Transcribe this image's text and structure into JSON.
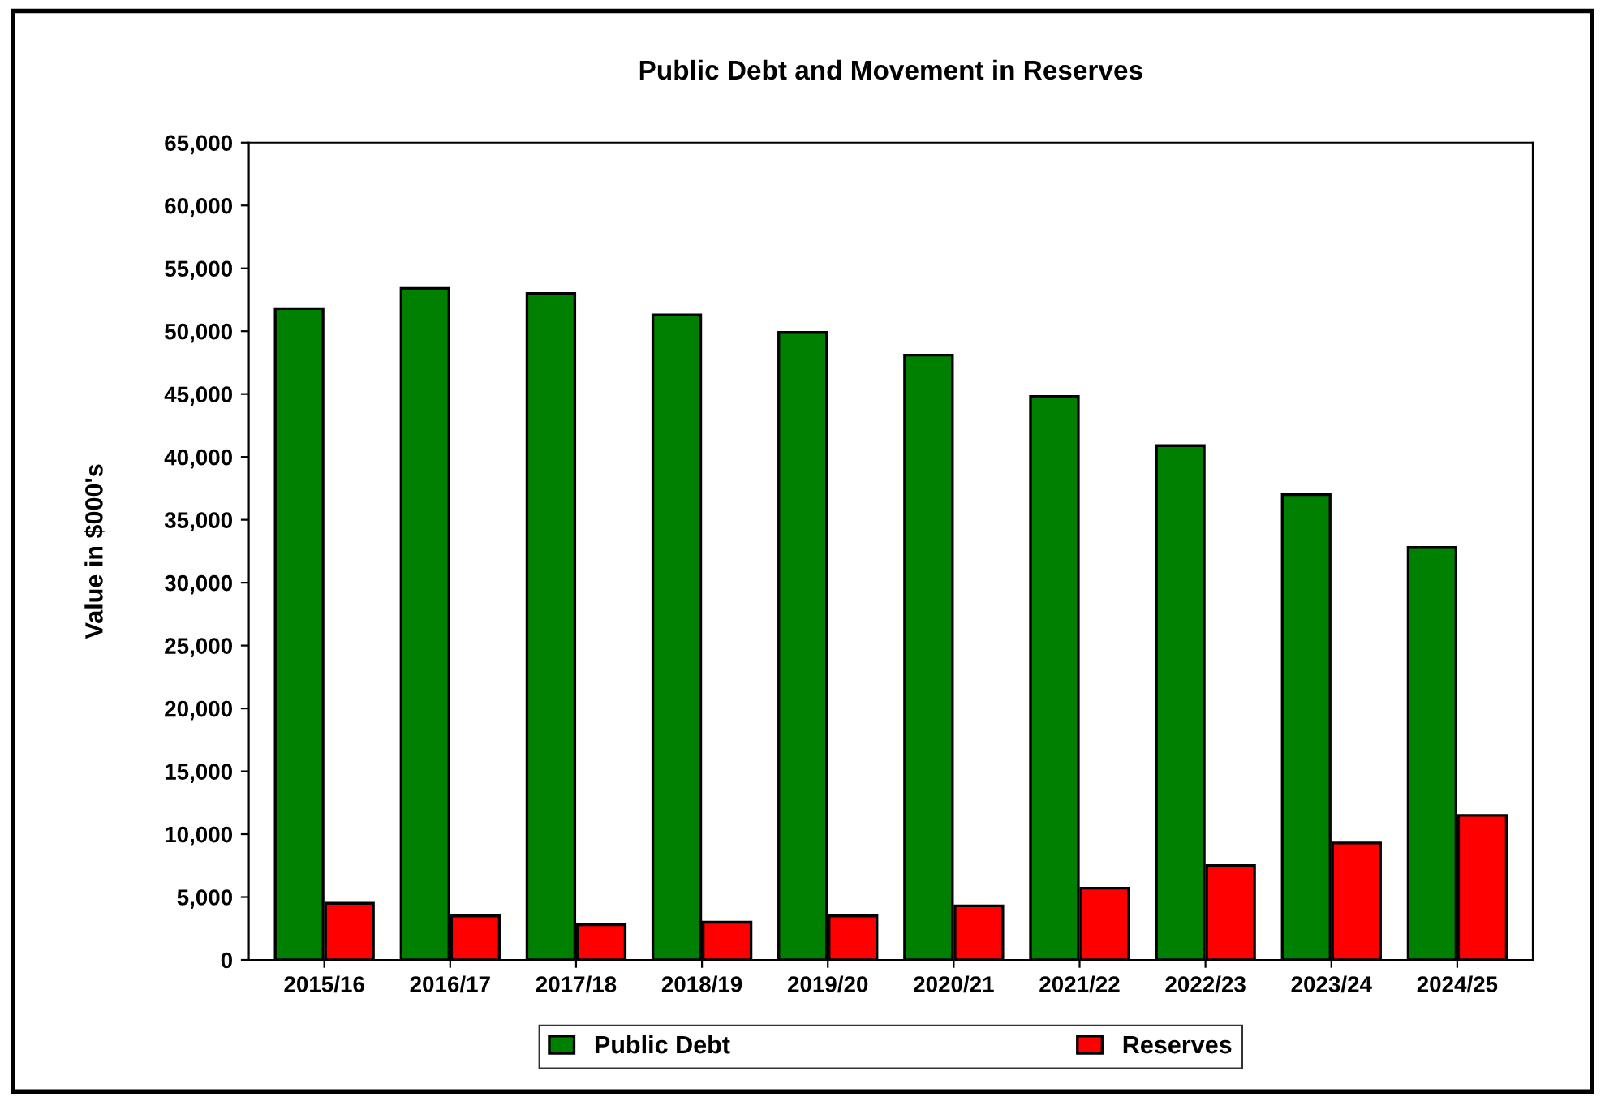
{
  "chart_data": {
    "type": "bar",
    "title": "Public Debt and Movement in Reserves",
    "ylabel": "Value in $000's",
    "categories": [
      "2015/16",
      "2016/17",
      "2017/18",
      "2018/19",
      "2019/20",
      "2020/21",
      "2021/22",
      "2022/23",
      "2023/24",
      "2024/25"
    ],
    "series": [
      {
        "name": "Public Debt",
        "color": "#008000",
        "values": [
          51800,
          53400,
          53000,
          51300,
          49900,
          48100,
          44800,
          40900,
          37000,
          32800
        ]
      },
      {
        "name": "Reserves",
        "color": "#ff0000",
        "values": [
          4500,
          3500,
          2800,
          3000,
          3500,
          4300,
          5700,
          7500,
          9300,
          11500
        ]
      }
    ],
    "ylim": [
      0,
      65000
    ],
    "yticks": [
      {
        "value": 0,
        "label": "0"
      },
      {
        "value": 5000,
        "label": "5,000"
      },
      {
        "value": 10000,
        "label": "10,000"
      },
      {
        "value": 15000,
        "label": "15,000"
      },
      {
        "value": 20000,
        "label": "20,000"
      },
      {
        "value": 25000,
        "label": "25,000"
      },
      {
        "value": 30000,
        "label": "30,000"
      },
      {
        "value": 35000,
        "label": "35,000"
      },
      {
        "value": 40000,
        "label": "40,000"
      },
      {
        "value": 45000,
        "label": "45,000"
      },
      {
        "value": 50000,
        "label": "50,000"
      },
      {
        "value": 55000,
        "label": "55,000"
      },
      {
        "value": 60000,
        "label": "60,000"
      },
      {
        "value": 65000,
        "label": "65,000"
      }
    ],
    "grid": false,
    "legend": "bottom"
  }
}
